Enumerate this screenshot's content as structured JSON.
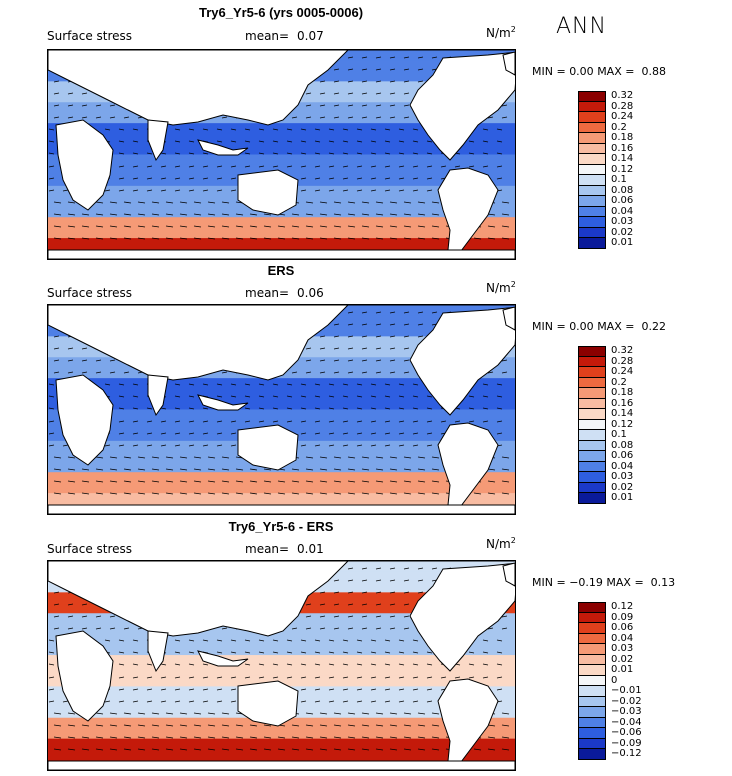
{
  "season": "ANN",
  "panels": [
    {
      "title": "Try6_Yr5-6 (yrs 0005-0006)",
      "field": "Surface stress",
      "mean_label": "mean=",
      "mean": "0.07",
      "unit": "N/m",
      "unit_exp": "2",
      "min_label": "MIN =",
      "min": "0.00",
      "max_label": "MAX =",
      "max": "0.88",
      "levels": [
        "0.32",
        "0.28",
        "0.24",
        "0.2",
        "0.18",
        "0.16",
        "0.14",
        "0.12",
        "0.1",
        "0.08",
        "0.06",
        "0.04",
        "0.03",
        "0.02",
        "0.01"
      ],
      "colors": [
        "#8b0000",
        "#c41a0a",
        "#e0401c",
        "#ee6a40",
        "#f59a76",
        "#f8bca2",
        "#fbd9c6",
        "#f4f6f8",
        "#cfe0f4",
        "#a7c6ef",
        "#7ca6ea",
        "#4f80e6",
        "#2e5ee0",
        "#1b39c8",
        "#0a1a9a"
      ]
    },
    {
      "title": "ERS",
      "field": "Surface stress",
      "mean_label": "mean=",
      "mean": "0.06",
      "unit": "N/m",
      "unit_exp": "2",
      "min_label": "MIN =",
      "min": "0.00",
      "max_label": "MAX =",
      "max": "0.22",
      "levels": [
        "0.32",
        "0.28",
        "0.24",
        "0.2",
        "0.18",
        "0.16",
        "0.14",
        "0.12",
        "0.1",
        "0.08",
        "0.06",
        "0.04",
        "0.03",
        "0.02",
        "0.01"
      ],
      "colors": [
        "#8b0000",
        "#c41a0a",
        "#e0401c",
        "#ee6a40",
        "#f59a76",
        "#f8bca2",
        "#fbd9c6",
        "#f4f6f8",
        "#cfe0f4",
        "#a7c6ef",
        "#7ca6ea",
        "#4f80e6",
        "#2e5ee0",
        "#1b39c8",
        "#0a1a9a"
      ]
    },
    {
      "title": "Try6_Yr5-6 - ERS",
      "field": "Surface stress",
      "mean_label": "mean=",
      "mean": "0.01",
      "unit": "N/m",
      "unit_exp": "2",
      "min_label": "MIN =",
      "min": "−0.19",
      "max_label": "MAX =",
      "max": "0.13",
      "levels": [
        "0.12",
        "0.09",
        "0.06",
        "0.04",
        "0.03",
        "0.02",
        "0.01",
        "0",
        "−0.01",
        "−0.02",
        "−0.03",
        "−0.04",
        "−0.06",
        "−0.09",
        "−0.12"
      ],
      "colors": [
        "#8b0000",
        "#c41a0a",
        "#e0401c",
        "#ee6a40",
        "#f59a76",
        "#f8bca2",
        "#fbd9c6",
        "#f4f6f8",
        "#cfe0f4",
        "#a7c6ef",
        "#7ca6ea",
        "#4f80e6",
        "#2e5ee0",
        "#1b39c8",
        "#0a1a9a"
      ]
    }
  ]
}
